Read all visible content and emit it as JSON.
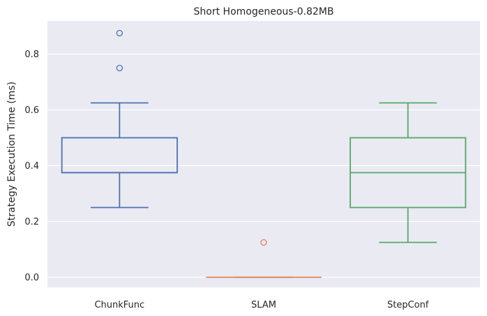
{
  "chart_data": {
    "type": "box",
    "title": "Short Homogeneous-0.82MB",
    "xlabel": "",
    "ylabel": "Strategy Execution Time (ms)",
    "ylim": [
      -0.04,
      0.92
    ],
    "yticks": [
      "0.0",
      "0.2",
      "0.4",
      "0.6",
      "0.8"
    ],
    "grid": true,
    "categories": [
      "ChunkFunc",
      "SLAM",
      "StepConf"
    ],
    "series": [
      {
        "category": "ChunkFunc",
        "color": "#4c72b0",
        "whisker_low": 0.25,
        "q1": 0.375,
        "median": 0.375,
        "q3": 0.5,
        "whisker_high": 0.625,
        "outliers": [
          0.75,
          0.875
        ]
      },
      {
        "category": "SLAM",
        "color": "#dd8452",
        "whisker_low": 0.0,
        "q1": 0.0,
        "median": 0.0,
        "q3": 0.0,
        "whisker_high": 0.0,
        "outliers": [
          0.125
        ]
      },
      {
        "category": "StepConf",
        "color": "#55a868",
        "whisker_low": 0.125,
        "q1": 0.25,
        "median": 0.375,
        "q3": 0.5,
        "whisker_high": 0.625,
        "outliers": []
      }
    ]
  }
}
